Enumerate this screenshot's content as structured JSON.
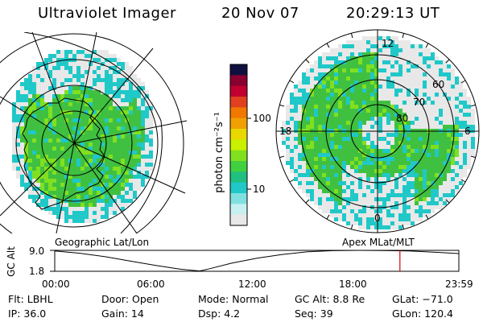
{
  "header": {
    "title": "Ultraviolet Imager",
    "date": "20 Nov 07",
    "time": "20:29:13 UT"
  },
  "colorbar": {
    "unit_label": "photon cm⁻²s⁻¹",
    "ticks": [
      "100",
      "10"
    ],
    "colors": [
      "#101040",
      "#8a0030",
      "#c00030",
      "#e04020",
      "#f07800",
      "#f0a000",
      "#e8d800",
      "#c8f000",
      "#80e020",
      "#40d040",
      "#20c080",
      "#20c8c8",
      "#80e0e0",
      "#c8f0f0",
      "#e8e8e8"
    ]
  },
  "left_map": {
    "caption": "Geographic Lat/Lon",
    "land_color": "#000000",
    "aurora_colors": [
      "#40c040",
      "#80e020",
      "#20c8c8",
      "#e8e8e8"
    ]
  },
  "right_map": {
    "caption": "Apex MLat/MLT",
    "mlt_labels": {
      "top": "12",
      "left": "18",
      "right": "6",
      "bottom": "0"
    },
    "lat_labels": [
      "60",
      "70",
      "80"
    ]
  },
  "altitude_plot": {
    "axis_label": "GC Alt",
    "y_ticks": [
      "9.0",
      "1.8"
    ],
    "x_ticks": [
      "00:00",
      "06:00",
      "12:00",
      "18:00",
      "23:59"
    ],
    "marker_time": "20:29",
    "marker_color": "#d00000",
    "samples": [
      {
        "t": 0.0,
        "alt": 8.8
      },
      {
        "t": 1.5,
        "alt": 8.0
      },
      {
        "t": 3.0,
        "alt": 6.8
      },
      {
        "t": 4.5,
        "alt": 5.3
      },
      {
        "t": 6.0,
        "alt": 3.8
      },
      {
        "t": 7.5,
        "alt": 2.5
      },
      {
        "t": 8.6,
        "alt": 1.9
      },
      {
        "t": 9.0,
        "alt": 2.4
      },
      {
        "t": 10.5,
        "alt": 4.6
      },
      {
        "t": 12.0,
        "alt": 6.3
      },
      {
        "t": 13.5,
        "alt": 7.6
      },
      {
        "t": 15.0,
        "alt": 8.5
      },
      {
        "t": 16.5,
        "alt": 8.9
      },
      {
        "t": 18.0,
        "alt": 9.0
      },
      {
        "t": 19.5,
        "alt": 8.95
      },
      {
        "t": 21.0,
        "alt": 8.8
      },
      {
        "t": 22.5,
        "alt": 8.4
      },
      {
        "t": 23.98,
        "alt": 7.9
      }
    ]
  },
  "status": {
    "flt": "Flt: LBHL",
    "door": "Door: Open",
    "mode": "Mode: Normal",
    "gc_alt": "GC Alt: 8.8 Re",
    "glat": "GLat: −71.0",
    "ip": "IP: 36.0",
    "gain": "Gain: 14",
    "dsp": "Dsp:     4.2",
    "seq": "Seq: 39",
    "glon": "GLon: 120.4"
  }
}
